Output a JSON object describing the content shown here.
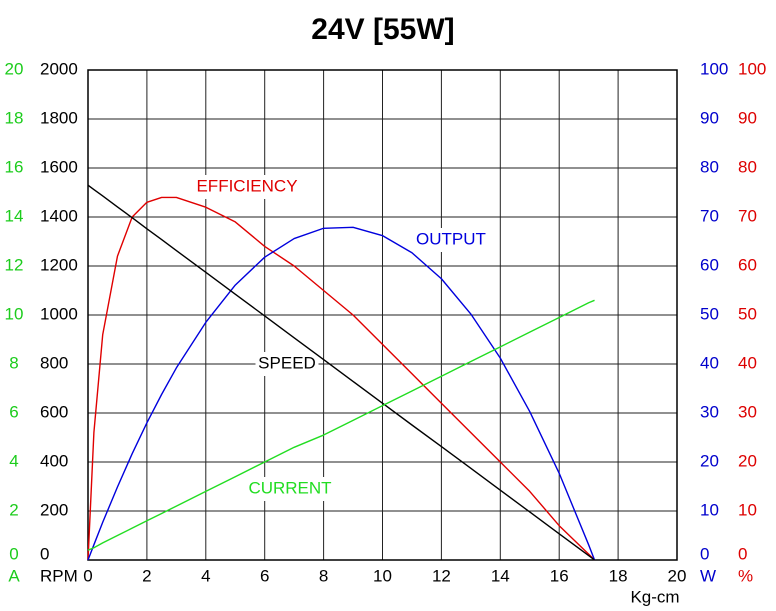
{
  "chart_data": {
    "type": "line",
    "title": "24V [55W]",
    "x_label": "Kg-cm",
    "xlim": [
      0,
      20
    ],
    "xticks": [
      0,
      2,
      4,
      6,
      8,
      10,
      12,
      14,
      16,
      18,
      20
    ],
    "grid": true,
    "axes": [
      {
        "label": "A",
        "color": "#1ccc1c",
        "side": "left",
        "lim": [
          0,
          20
        ],
        "ticks": [
          0,
          2,
          4,
          6,
          8,
          10,
          12,
          14,
          16,
          18,
          20
        ]
      },
      {
        "label": "RPM",
        "color": "#000000",
        "side": "left",
        "lim": [
          0,
          2000
        ],
        "ticks": [
          0,
          200,
          400,
          600,
          800,
          1000,
          1200,
          1400,
          1600,
          1800,
          2000
        ]
      },
      {
        "label": "W",
        "color": "#0000cc",
        "side": "right",
        "lim": [
          0,
          100
        ],
        "ticks": [
          0,
          10,
          20,
          30,
          40,
          50,
          60,
          70,
          80,
          90,
          100
        ]
      },
      {
        "label": "%",
        "color": "#dd0000",
        "side": "right",
        "lim": [
          0,
          100
        ],
        "ticks": [
          0,
          10,
          20,
          30,
          40,
          50,
          60,
          70,
          80,
          90,
          100
        ]
      }
    ],
    "x": [
      0,
      0.2,
      0.5,
      1,
      1.5,
      2,
      2.5,
      3,
      4,
      5,
      6,
      7,
      8,
      9,
      10,
      11,
      12,
      13,
      14,
      15,
      16,
      17,
      17.2
    ],
    "series": [
      {
        "name": "EFFICIENCY",
        "color": "#e00000",
        "axis": 3,
        "values": [
          0,
          26,
          46,
          62,
          70,
          73,
          74,
          74,
          72,
          69,
          64,
          60,
          55,
          50,
          44,
          38,
          32,
          26,
          20,
          14,
          7,
          1.2,
          0
        ]
      },
      {
        "name": "OUTPUT",
        "color": "#0000dd",
        "axis": 2,
        "values": [
          0,
          3.1,
          7.7,
          14.9,
          21.7,
          28.0,
          33.8,
          39.2,
          48.5,
          56.1,
          61.8,
          65.6,
          67.7,
          67.9,
          66.2,
          62.7,
          57.4,
          50.2,
          41.2,
          30.3,
          17.7,
          3.1,
          0
        ]
      },
      {
        "name": "SPEED",
        "color": "#000000",
        "axis": 1,
        "values": [
          1530,
          1512,
          1486,
          1441,
          1397,
          1352,
          1308,
          1263,
          1174,
          1085,
          996,
          907,
          818,
          729,
          640,
          551,
          463,
          374,
          285,
          196,
          107,
          18,
          0
        ]
      },
      {
        "name": "CURRENT",
        "color": "#22dd22",
        "axis": 0,
        "values": [
          0.4,
          0.5,
          0.7,
          1.0,
          1.3,
          1.6,
          1.9,
          2.2,
          2.8,
          3.4,
          4.0,
          4.6,
          5.1,
          5.7,
          6.3,
          6.9,
          7.5,
          8.1,
          8.7,
          9.3,
          9.9,
          10.5,
          10.6
        ]
      }
    ]
  }
}
